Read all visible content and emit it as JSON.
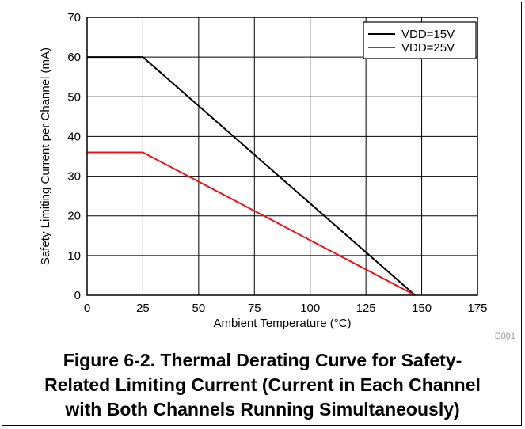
{
  "chart_data": {
    "type": "line",
    "title": "",
    "xlabel": "Ambient Temperature (°C)",
    "ylabel": "Safety Limiting Current per Channel (mA)",
    "xlim": [
      0,
      175
    ],
    "ylim": [
      0,
      70
    ],
    "xticks": [
      0,
      25,
      50,
      75,
      100,
      125,
      150,
      175
    ],
    "yticks": [
      0,
      10,
      20,
      30,
      40,
      50,
      60,
      70
    ],
    "grid": true,
    "legend_position": "top-right",
    "series": [
      {
        "name": "VDD=15V",
        "color": "#000000",
        "x": [
          0,
          25,
          147
        ],
        "y": [
          60,
          60,
          0
        ]
      },
      {
        "name": "VDD=25V",
        "color": "#e8141b",
        "x": [
          0,
          25,
          147
        ],
        "y": [
          36,
          36,
          0
        ]
      }
    ],
    "figure_id": "D001"
  },
  "caption": {
    "line1": "Figure 6-2. Thermal Derating Curve for Safety-",
    "line2": "Related Limiting Current (Current in Each Channel",
    "line3": "with Both Channels Running Simultaneously)"
  }
}
